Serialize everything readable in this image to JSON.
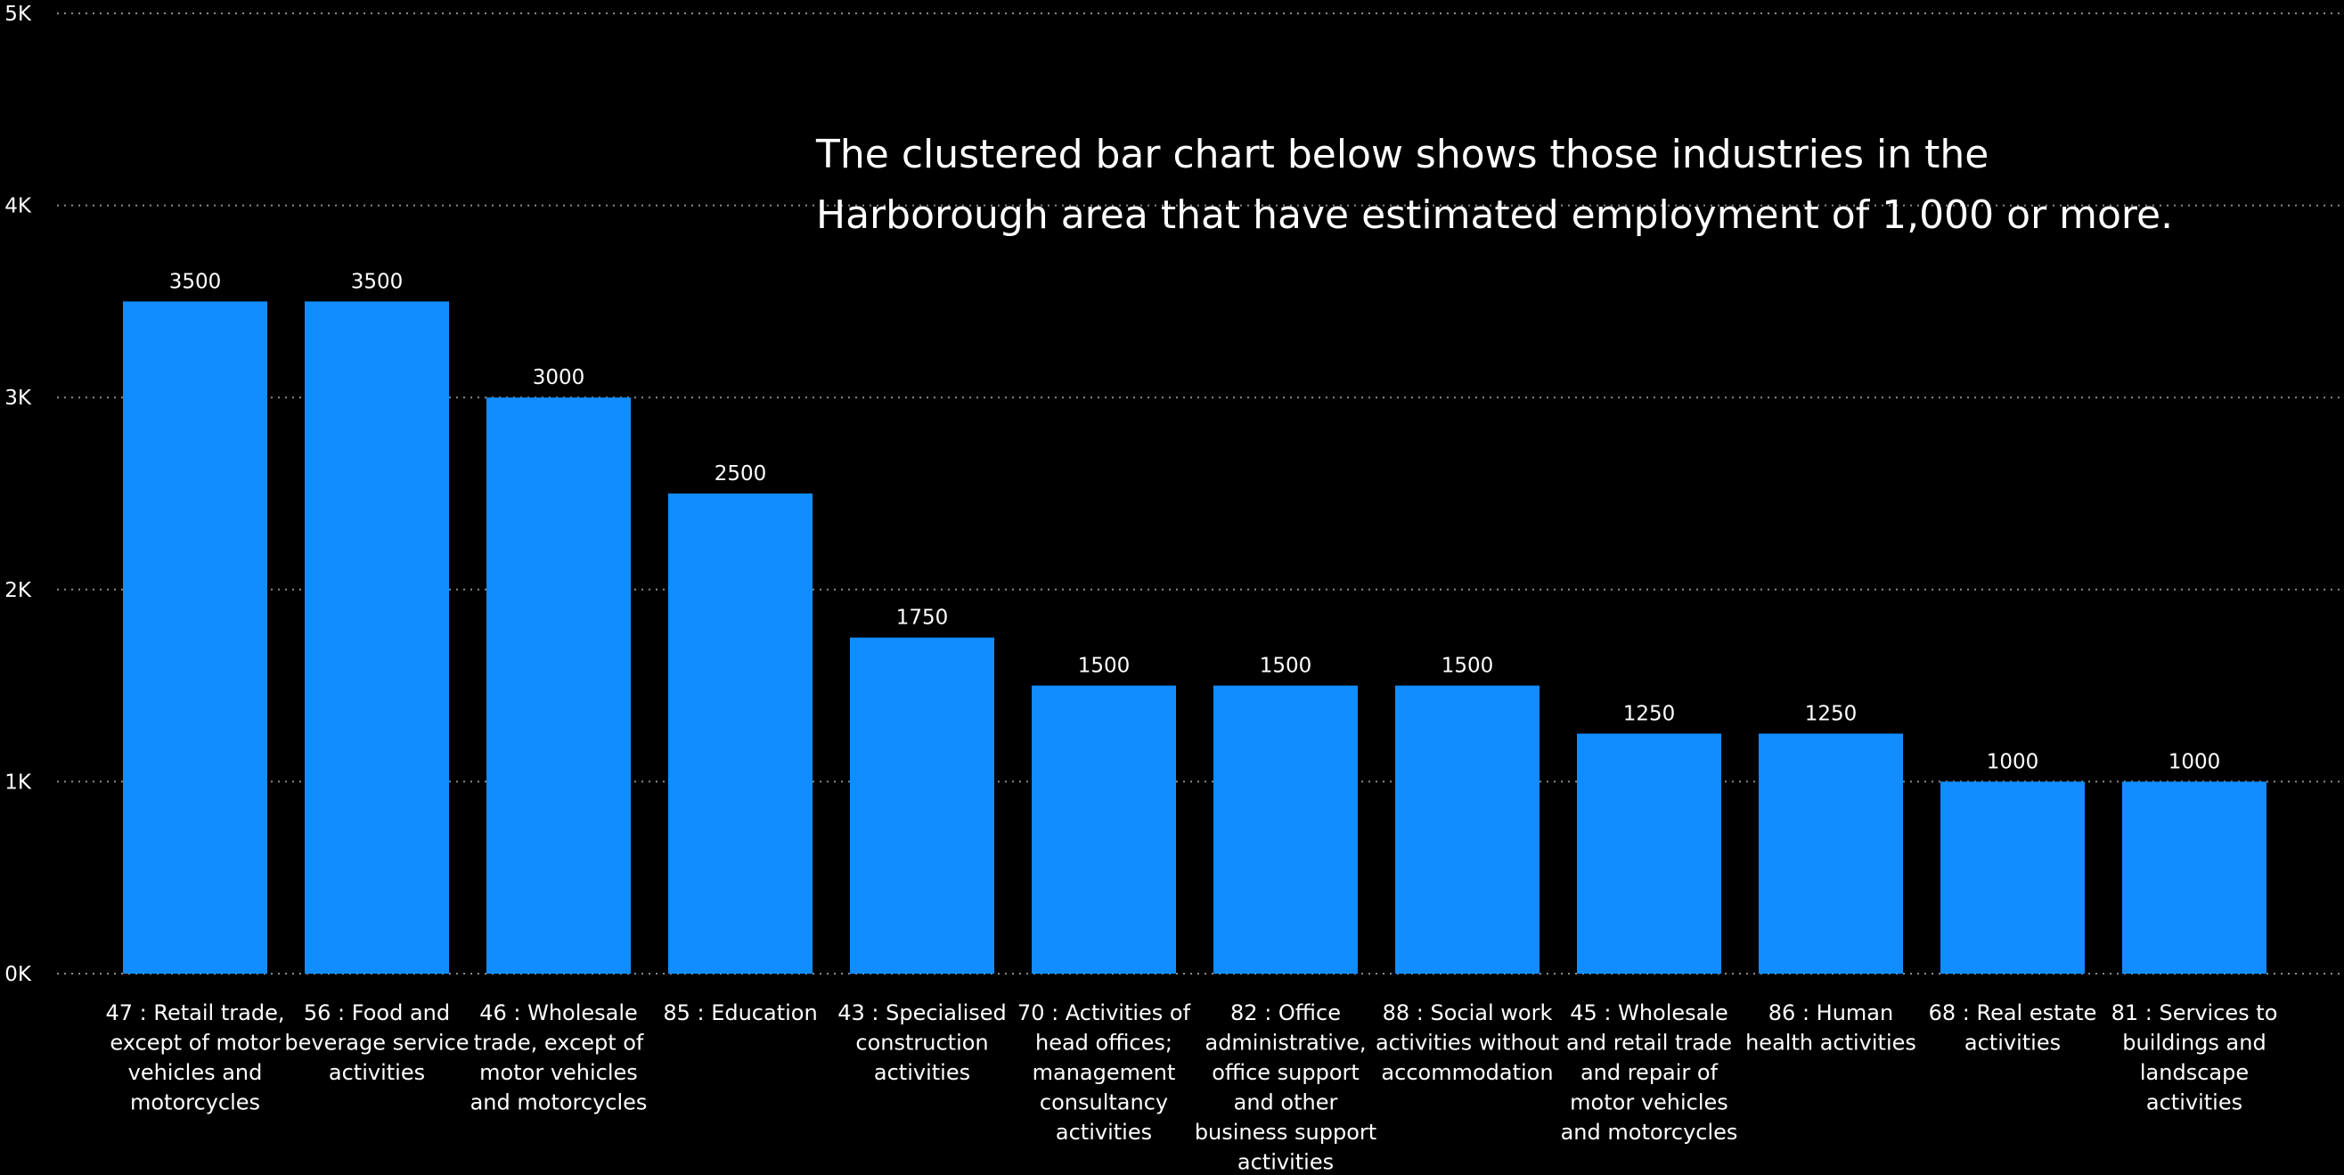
{
  "annotation": "The clustered bar chart below shows those industries in the Harborough area that have estimated employment of 1,000 or more.",
  "chart_data": {
    "type": "bar",
    "categories": [
      "47 : Retail trade, except of motor vehicles and motorcycles",
      "56 : Food and beverage service activities",
      "46 : Wholesale trade, except of motor vehicles and motorcycles",
      "85 : Education",
      "43 : Specialised construction activities",
      "70 : Activities of head offices; management consultancy activities",
      "82 : Office administrative, office support and other business support activities",
      "88 : Social work activities without accommodation",
      "45 : Wholesale and retail trade and repair of motor vehicles and motorcycles",
      "86 : Human health activities",
      "68 : Real estate activities",
      "81 : Services to buildings and landscape activities"
    ],
    "category_lines": [
      [
        "47 : Retail trade,",
        "except of motor",
        "vehicles and",
        "motorcycles"
      ],
      [
        "56 : Food and",
        "beverage service",
        "activities"
      ],
      [
        "46 : Wholesale",
        "trade, except of",
        "motor vehicles",
        "and motorcycles"
      ],
      [
        "85 : Education"
      ],
      [
        "43 : Specialised",
        "construction",
        "activities"
      ],
      [
        "70 : Activities of",
        "head offices;",
        "management",
        "consultancy",
        "activities"
      ],
      [
        "82 : Office",
        "administrative,",
        "office support",
        "and other",
        "business support",
        "activities"
      ],
      [
        "88 : Social work",
        "activities without",
        "accommodation"
      ],
      [
        "45 : Wholesale",
        "and retail trade",
        "and repair of",
        "motor vehicles",
        "and motorcycles"
      ],
      [
        "86 : Human",
        "health activities"
      ],
      [
        "68 : Real estate",
        "activities"
      ],
      [
        "81 : Services to",
        "buildings and",
        "landscape",
        "activities"
      ]
    ],
    "values": [
      3500,
      3500,
      3000,
      2500,
      1750,
      1500,
      1500,
      1500,
      1250,
      1250,
      1000,
      1000
    ],
    "data_labels": [
      "3500",
      "3500",
      "3000",
      "2500",
      "1750",
      "1500",
      "1500",
      "1500",
      "1250",
      "1250",
      "1000",
      "1000"
    ],
    "y_ticks": [
      {
        "value": 0,
        "label": "0K"
      },
      {
        "value": 1000,
        "label": "1K"
      },
      {
        "value": 2000,
        "label": "2K"
      },
      {
        "value": 3000,
        "label": "3K"
      },
      {
        "value": 4000,
        "label": "4K"
      },
      {
        "value": 5000,
        "label": "5K"
      }
    ],
    "ylim": [
      0,
      5000
    ],
    "grid": true,
    "legend": false,
    "bar_color": "#118DFF",
    "background": "#000000",
    "text_color": "#FFFFFF"
  }
}
